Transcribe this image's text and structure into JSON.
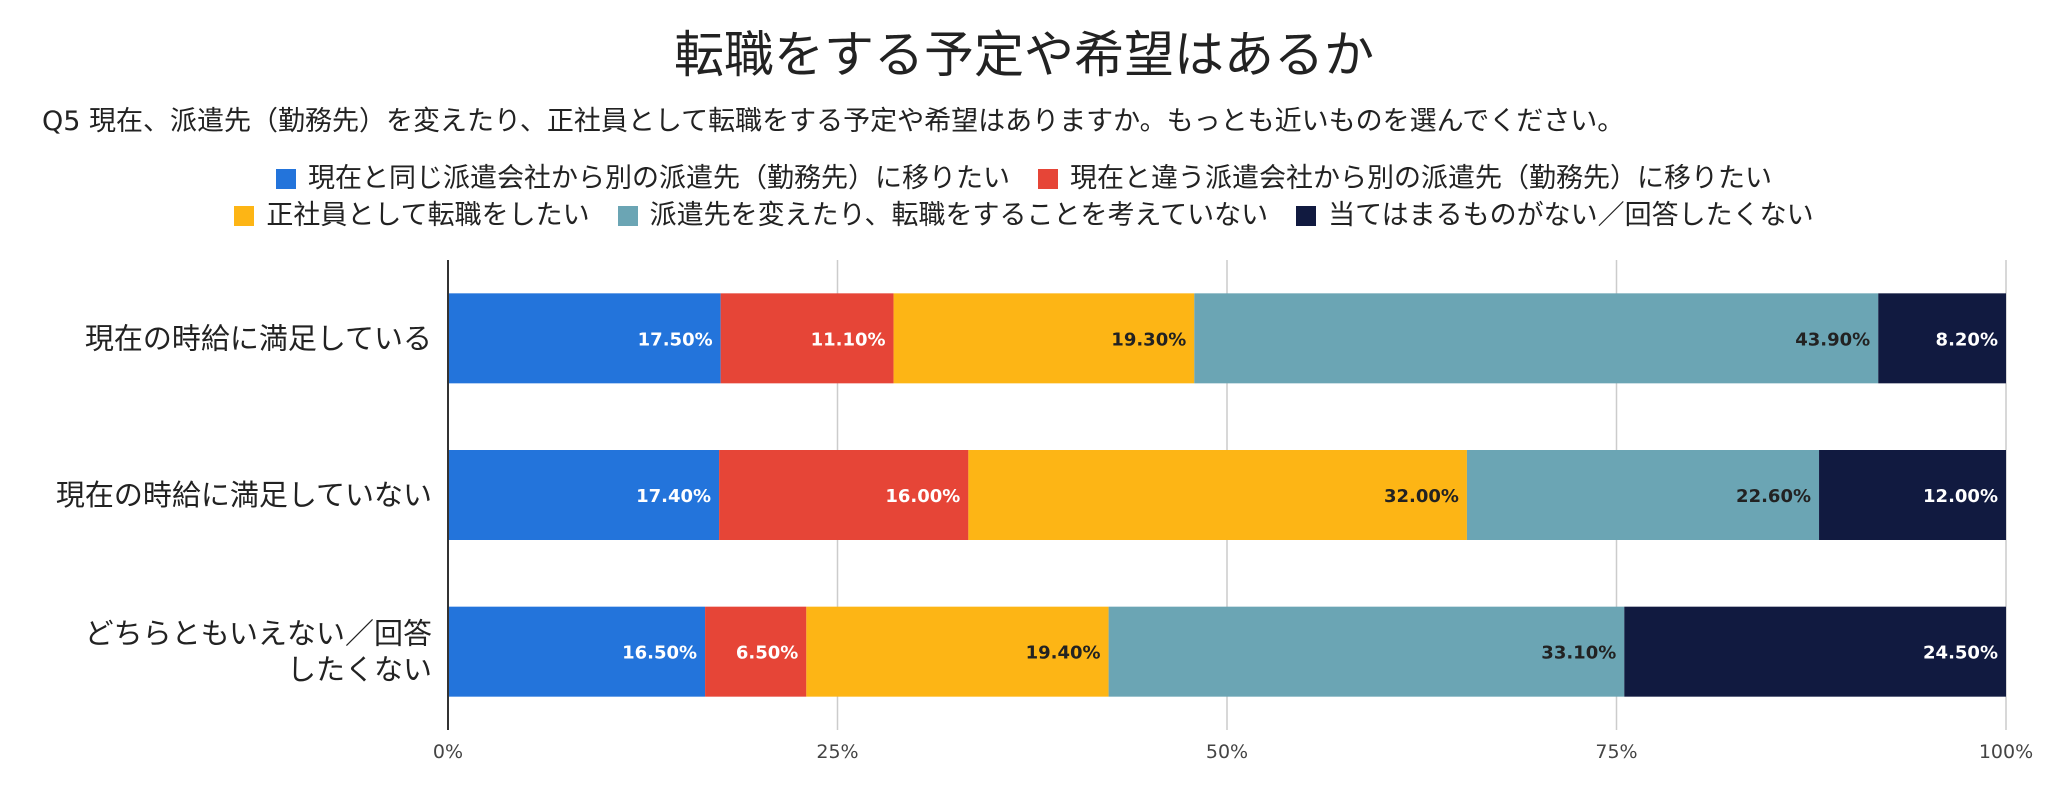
{
  "chart_data": {
    "type": "bar",
    "orientation": "horizontal",
    "stacked": true,
    "title": "転職をする予定や希望はあるか",
    "subtitle": "Q5 現在、派遣先（勤務先）を変えたり、正社員として転職をする予定や希望はありますか。もっとも近いものを選んでください。",
    "categories": [
      "現在の時給に満足している",
      "現在の時給に満足していない",
      "どちらともいえない／回答したくない"
    ],
    "series": [
      {
        "name": "現在と同じ派遣会社から別の派遣先（勤務先）に移りたい",
        "color": "#2374db",
        "label_color": "#ffffff",
        "values": [
          17.5,
          17.4,
          16.5
        ]
      },
      {
        "name": "現在と違う派遣会社から別の派遣先（勤務先）に移りたい",
        "color": "#e64537",
        "label_color": "#ffffff",
        "values": [
          11.1,
          16.0,
          6.5
        ]
      },
      {
        "name": "正社員として転職をしたい",
        "color": "#fdb515",
        "label_color": "#222222",
        "values": [
          19.3,
          32.0,
          19.4
        ]
      },
      {
        "name": "派遣先を変えたり、転職をすることを考えていない",
        "color": "#6ba5b4",
        "label_color": "#222222",
        "values": [
          43.9,
          22.6,
          33.1
        ]
      },
      {
        "name": "当てはまるものがない／回答したくない",
        "color": "#111a40",
        "label_color": "#ffffff",
        "values": [
          8.2,
          12.0,
          24.5
        ]
      }
    ],
    "data_labels": [
      [
        "17.50%",
        "17.40%",
        "16.50%"
      ],
      [
        "11.10%",
        "16.00%",
        "6.50%"
      ],
      [
        "19.30%",
        "32.00%",
        "19.40%"
      ],
      [
        "43.90%",
        "22.60%",
        "33.10%"
      ],
      [
        "8.20%",
        "12.00%",
        "24.50%"
      ]
    ],
    "x_ticks": [
      0,
      25,
      50,
      75,
      100
    ],
    "x_tick_labels": [
      "0%",
      "25%",
      "50%",
      "75%",
      "100%"
    ],
    "xlim": [
      0,
      100
    ],
    "xlabel": "",
    "ylabel": "",
    "grid": true,
    "legend_position": "top"
  }
}
